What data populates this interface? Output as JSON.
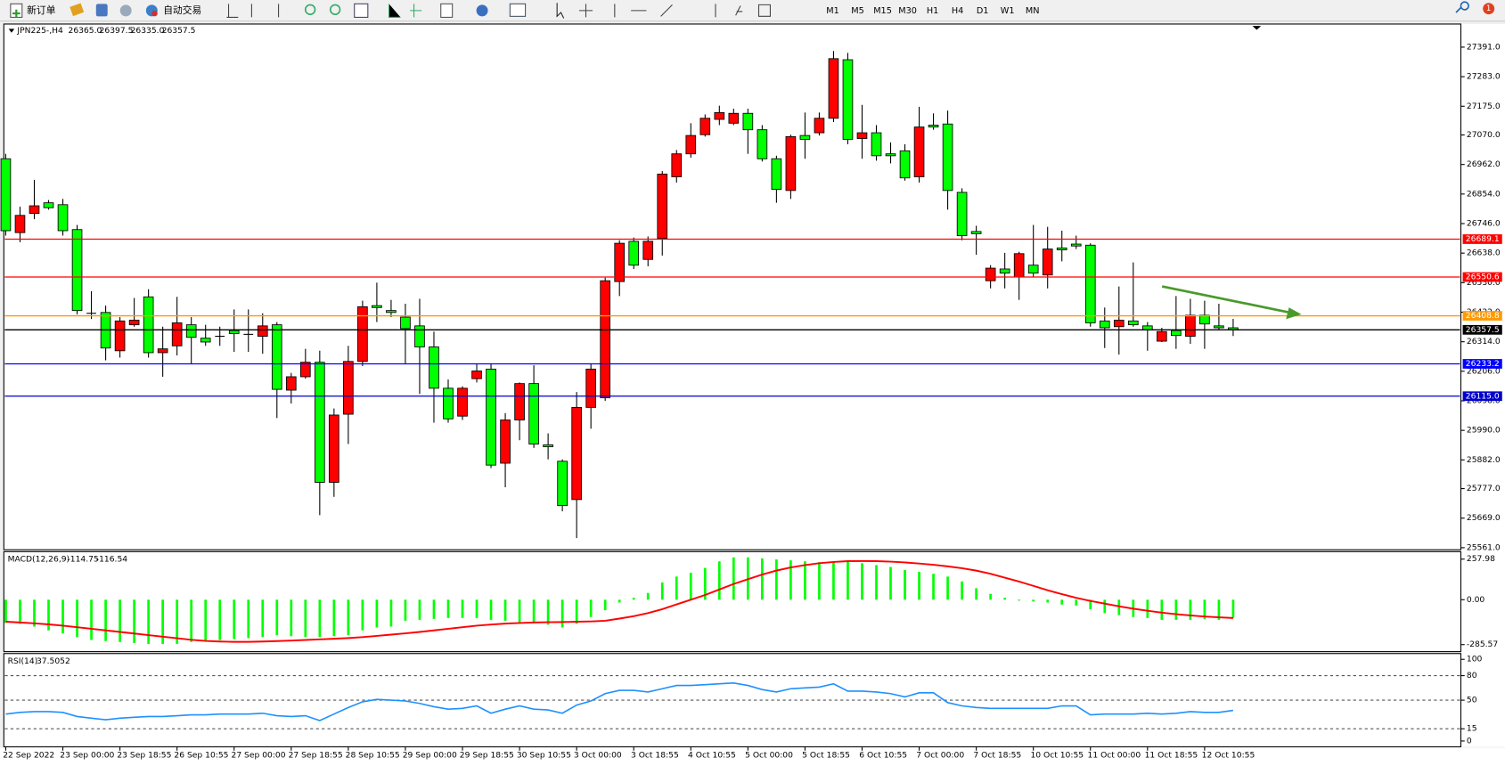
{
  "toolbar": {
    "new_order": "新订单",
    "auto_trading": "自动交易",
    "timeframes": [
      "M1",
      "M5",
      "M15",
      "M30",
      "H1",
      "H4",
      "D1",
      "W1",
      "MN"
    ],
    "badge": "1"
  },
  "chart_data": [
    {
      "type": "candlestick",
      "title": "JPN225-,H4",
      "ohlc_readout": [
        "26365.0",
        "26397.5",
        "26335.0",
        "26357.5"
      ],
      "categories": [
        "22 Sep 2022",
        null,
        null,
        null,
        "23 Sep 00:00",
        null,
        null,
        null,
        "23 Sep 18:55",
        null,
        null,
        null,
        "26 Sep 10:55",
        null,
        null,
        null,
        "27 Sep 00:00",
        null,
        null,
        null,
        "27 Sep 18:55",
        null,
        null,
        null,
        "28 Sep 10:55",
        null,
        null,
        null,
        "29 Sep 00:00",
        null,
        null,
        null,
        "29 Sep 18:55",
        null,
        null,
        null,
        "30 Sep 10:55",
        null,
        null,
        null,
        "3 Oct 00:00",
        null,
        null,
        null,
        "3 Oct 18:55",
        null,
        null,
        null,
        "4 Oct 10:55",
        null,
        null,
        null,
        "5 Oct 00:00",
        null,
        null,
        null,
        "5 Oct 18:55",
        null,
        null,
        null,
        "6 Oct 10:55",
        null,
        null,
        null,
        "7 Oct 00:00",
        null,
        null,
        null,
        "7 Oct 18:55",
        null,
        null,
        null,
        "10 Oct 10:55",
        null,
        null,
        null,
        "11 Oct 00:00",
        null,
        null,
        null,
        "11 Oct 18:55",
        null,
        null,
        null,
        "12 Oct 10:55",
        null,
        null
      ],
      "open": [
        26983,
        26713,
        26783,
        26822,
        26815,
        26724,
        26421,
        26421,
        26281,
        26376,
        26478,
        26274,
        26299,
        26376,
        26327,
        26337,
        26355,
        26344,
        26334,
        26376,
        26137,
        26186,
        26239,
        25800,
        26049,
        26242,
        26446,
        26428,
        26404,
        26372,
        26295,
        26144,
        26042,
        26179,
        26214,
        25870,
        26028,
        26161,
        25937,
        25877,
        25737,
        26074,
        26109,
        26534,
        26681,
        26615,
        26692,
        26917,
        27001,
        27071,
        27127,
        27113,
        27149,
        27089,
        26983,
        26867,
        27068,
        27078,
        27131,
        27345,
        27057,
        27078,
        27001,
        27012,
        26917,
        27106,
        27110,
        26860,
        26717,
        26537,
        26580,
        26551,
        26594,
        26558,
        26657,
        26671,
        26667,
        26390,
        26369,
        26390,
        26372,
        26316,
        26355,
        26334,
        26411,
        26372,
        26365
      ],
      "high": [
        27001,
        26808,
        26906,
        26832,
        26836,
        26741,
        26499,
        26446,
        26404,
        26474,
        26506,
        26369,
        26478,
        26404,
        26376,
        26369,
        26432,
        26432,
        26418,
        26386,
        26200,
        26288,
        26281,
        26070,
        26299,
        26464,
        26530,
        26467,
        26453,
        26471,
        26351,
        26176,
        26151,
        26232,
        26235,
        26053,
        26165,
        26228,
        25979,
        25884,
        26130,
        26235,
        26548,
        26685,
        26695,
        26699,
        26938,
        27015,
        27113,
        27145,
        27177,
        27166,
        27166,
        27106,
        26994,
        27071,
        27152,
        27152,
        27377,
        27370,
        27180,
        27106,
        27043,
        27036,
        27173,
        27149,
        27159,
        26875,
        26738,
        26594,
        26639,
        26643,
        26741,
        26734,
        26720,
        26702,
        26674,
        26439,
        26516,
        26604,
        26386,
        26365,
        26481,
        26471,
        26464,
        26453,
        26397.5
      ],
      "low": [
        26702,
        26678,
        26762,
        26797,
        26702,
        26414,
        26397,
        26246,
        26256,
        26369,
        26256,
        26186,
        26264,
        26232,
        26299,
        26299,
        26277,
        26277,
        26270,
        26035,
        26088,
        26179,
        25680,
        25747,
        25940,
        26225,
        26386,
        26404,
        26235,
        26123,
        26018,
        26018,
        26028,
        26165,
        25852,
        25782,
        25954,
        25926,
        25884,
        25694,
        25596,
        25996,
        26098,
        26481,
        26580,
        26590,
        26629,
        26896,
        26987,
        27064,
        27106,
        27106,
        27001,
        26973,
        26822,
        26836,
        26983,
        27068,
        27117,
        27036,
        26983,
        26976,
        26966,
        26903,
        26896,
        27089,
        26797,
        26685,
        26632,
        26509,
        26509,
        26467,
        26551,
        26509,
        26608,
        26653,
        26369,
        26291,
        26267,
        26369,
        26281,
        26313,
        26288,
        26306,
        26288,
        26358,
        26335
      ],
      "close": [
        26720,
        26776,
        26811,
        26804,
        26720,
        26428,
        26418,
        26291,
        26390,
        26393,
        26274,
        26288,
        26383,
        26330,
        26313,
        26334,
        26344,
        26341,
        26372,
        26140,
        26186,
        26239,
        25800,
        26046,
        26242,
        26442,
        26439,
        26421,
        26362,
        26295,
        26144,
        26032,
        26144,
        26207,
        25863,
        26028,
        26161,
        25940,
        25930,
        25715,
        26074,
        26214,
        26537,
        26674,
        26594,
        26681,
        26927,
        27001,
        27068,
        27131,
        27152,
        27149,
        27089,
        26983,
        26871,
        27064,
        27054,
        27131,
        27349,
        27054,
        27078,
        26994,
        26994,
        26913,
        27099,
        27099,
        26867,
        26702,
        26709,
        26583,
        26565,
        26636,
        26565,
        26653,
        26650,
        26664,
        26383,
        26365,
        26393,
        26376,
        26358,
        26351,
        26337,
        26411,
        26379,
        26365,
        26357.5
      ],
      "up_color": "#ff0000",
      "down_color": "#00ff00",
      "ylim": [
        25557,
        27465
      ],
      "yticks": [
        {
          "value": 27391,
          "label": "27391.0"
        },
        {
          "value": 27283,
          "label": "27283.0"
        },
        {
          "value": 27175,
          "label": "27175.0"
        },
        {
          "value": 27070,
          "label": "27070.0"
        },
        {
          "value": 26962,
          "label": "26962.0"
        },
        {
          "value": 26854,
          "label": "26854.0"
        },
        {
          "value": 26746,
          "label": "26746.0"
        },
        {
          "value": 26638,
          "label": "26638.0"
        },
        {
          "value": 26530,
          "label": "26530.0"
        },
        {
          "value": 26422,
          "label": "26422.0"
        },
        {
          "value": 26314,
          "label": "26314.0"
        },
        {
          "value": 26206,
          "label": "26206.0"
        },
        {
          "value": 26098,
          "label": "26098.0"
        },
        {
          "value": 25990,
          "label": "25990.0"
        },
        {
          "value": 25882,
          "label": "25882.0"
        },
        {
          "value": 25777,
          "label": "25777.0"
        },
        {
          "value": 25669,
          "label": "25669.0"
        },
        {
          "value": 25561,
          "label": "25561.0"
        }
      ],
      "levels": [
        {
          "value": 26689.1,
          "color": "#ff0000"
        },
        {
          "value": 26550.6,
          "color": "#ff0000"
        },
        {
          "value": 26408.8,
          "color": "#ff9900"
        },
        {
          "value": 26233.2,
          "color": "#0000ff"
        },
        {
          "value": 26115,
          "label": "26115.0",
          "color": "#0000cc"
        }
      ]
    },
    {
      "type": "macd",
      "title": "MACD(12,26,9)",
      "readout": [
        "-114.75",
        "-116.54"
      ],
      "histogram": {
        "color": "#00ff00",
        "values": [
          -147,
          -153,
          -171,
          -195,
          -214,
          -238,
          -256,
          -263,
          -269,
          -275,
          -281,
          -281,
          -281,
          -269,
          -263,
          -256,
          -250,
          -244,
          -238,
          -226,
          -232,
          -238,
          -238,
          -232,
          -226,
          -195,
          -177,
          -171,
          -134,
          -128,
          -122,
          -116,
          -116,
          -116,
          -128,
          -134,
          -153,
          -147,
          -159,
          -177,
          -153,
          -110,
          -67,
          -18,
          12,
          43,
          110,
          147,
          171,
          202,
          244,
          269,
          269,
          263,
          256,
          250,
          244,
          238,
          244,
          244,
          232,
          220,
          208,
          189,
          177,
          165,
          147,
          116,
          73,
          37,
          12,
          -6,
          -12,
          -18,
          -31,
          -37,
          -61,
          -85,
          -98,
          -110,
          -116,
          -128,
          -128,
          -128,
          -122,
          -128,
          -114.75
        ]
      },
      "signal": {
        "color": "#ff0000",
        "values": [
          -140,
          -145,
          -150,
          -157,
          -165,
          -175,
          -185,
          -195,
          -205,
          -215,
          -225,
          -235,
          -245,
          -255,
          -262,
          -266,
          -268,
          -268,
          -266,
          -263,
          -260,
          -256,
          -252,
          -248,
          -244,
          -238,
          -230,
          -222,
          -214,
          -205,
          -195,
          -185,
          -175,
          -165,
          -158,
          -152,
          -148,
          -145,
          -143,
          -142,
          -140,
          -138,
          -134,
          -120,
          -105,
          -85,
          -60,
          -30,
          0,
          30,
          65,
          100,
          130,
          160,
          185,
          205,
          220,
          232,
          240,
          245,
          246,
          245,
          242,
          237,
          230,
          222,
          212,
          200,
          185,
          165,
          140,
          115,
          88,
          60,
          35,
          12,
          -8,
          -25,
          -42,
          -57,
          -70,
          -82,
          -92,
          -100,
          -107,
          -112,
          -116.54
        ]
      },
      "ylim": [
        -324,
        287
      ],
      "yticks": [
        257.98,
        {
          "value": 0,
          "label": "0.00"
        },
        -285.57
      ]
    },
    {
      "type": "rsi",
      "title": "RSI(14)",
      "readout": "37.5052",
      "color": "#1e90ff",
      "values": [
        33,
        35,
        36,
        36,
        35,
        30,
        28,
        26,
        28,
        29,
        30,
        30,
        31,
        32,
        32,
        33,
        33,
        33,
        34,
        31,
        30,
        31,
        25,
        33,
        41,
        48,
        51,
        50,
        49,
        46,
        42,
        39,
        40,
        43,
        34,
        39,
        43,
        39,
        38,
        34,
        44,
        49,
        58,
        62,
        62,
        60,
        64,
        68,
        68,
        69,
        70,
        71,
        68,
        63,
        60,
        64,
        65,
        66,
        70,
        61,
        61,
        60,
        58,
        54,
        59,
        59,
        47,
        43,
        41,
        40,
        40,
        40,
        40,
        40,
        43,
        43,
        32,
        33,
        33,
        33,
        34,
        33,
        34,
        36,
        35,
        35,
        37.5052
      ],
      "ylim": [
        0,
        100
      ],
      "yticks": [
        100,
        80,
        50,
        15,
        0
      ]
    }
  ]
}
